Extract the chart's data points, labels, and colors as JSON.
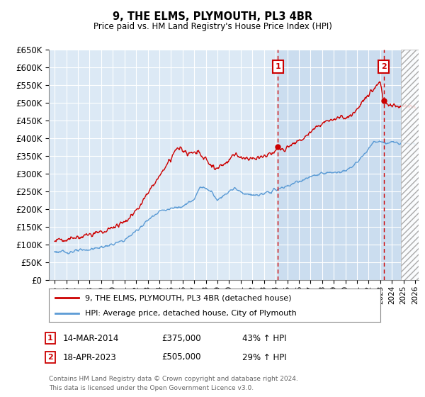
{
  "title": "9, THE ELMS, PLYMOUTH, PL3 4BR",
  "subtitle": "Price paid vs. HM Land Registry's House Price Index (HPI)",
  "ylim": [
    0,
    650000
  ],
  "yticks": [
    0,
    50000,
    100000,
    150000,
    200000,
    250000,
    300000,
    350000,
    400000,
    450000,
    500000,
    550000,
    600000,
    650000
  ],
  "xlim_start": 1994.5,
  "xlim_end": 2026.3,
  "background_color": "#ffffff",
  "plot_bg_color": "#dce9f5",
  "grid_color": "#c8d8e8",
  "hatch_start": 2024.75,
  "shade_start": 2014.2,
  "sale1_x": 2014.2,
  "sale1_y": 375000,
  "sale2_x": 2023.29,
  "sale2_y": 505000,
  "legend_line1": "9, THE ELMS, PLYMOUTH, PL3 4BR (detached house)",
  "legend_line2": "HPI: Average price, detached house, City of Plymouth",
  "footer1": "Contains HM Land Registry data © Crown copyright and database right 2024.",
  "footer2": "This data is licensed under the Open Government Licence v3.0.",
  "red_line_color": "#cc0000",
  "blue_line_color": "#5b9bd5",
  "xtick_years": [
    1995,
    1996,
    1997,
    1998,
    1999,
    2000,
    2001,
    2002,
    2003,
    2004,
    2005,
    2006,
    2007,
    2008,
    2009,
    2010,
    2011,
    2012,
    2013,
    2014,
    2015,
    2016,
    2017,
    2018,
    2019,
    2020,
    2021,
    2022,
    2023,
    2024,
    2025,
    2026
  ]
}
